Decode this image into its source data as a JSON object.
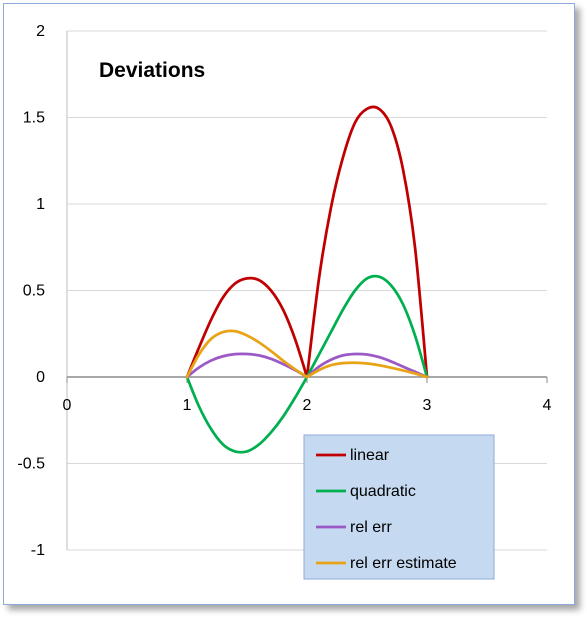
{
  "chart_data": {
    "type": "line",
    "title": "Deviations",
    "xlabel": "",
    "ylabel": "",
    "xlim": [
      0,
      4
    ],
    "ylim": [
      -1,
      2
    ],
    "x_ticks": [
      "0",
      "1",
      "2",
      "3",
      "4"
    ],
    "y_ticks": [
      "2",
      "1.5",
      "1",
      "0.5",
      "0",
      "-0.5",
      "-1"
    ],
    "grid": "horizontal",
    "legend_position": "bottom-right",
    "series": [
      {
        "name": "linear",
        "color": "#c00000",
        "x": [
          1.0,
          1.1,
          1.2,
          1.3,
          1.4,
          1.5,
          1.6,
          1.7,
          1.8,
          1.9,
          2.0,
          2.1,
          2.2,
          2.3,
          2.4,
          2.5,
          2.6,
          2.7,
          2.8,
          2.9,
          3.0
        ],
        "y": [
          0.0,
          0.17,
          0.33,
          0.46,
          0.54,
          0.57,
          0.56,
          0.5,
          0.39,
          0.22,
          0.0,
          0.57,
          0.98,
          1.27,
          1.47,
          1.55,
          1.55,
          1.45,
          1.2,
          0.75,
          0.0
        ]
      },
      {
        "name": "quadratic",
        "color": "#00b050",
        "x": [
          1.0,
          1.1,
          1.2,
          1.3,
          1.4,
          1.5,
          1.6,
          1.7,
          1.8,
          1.9,
          2.0,
          2.1,
          2.2,
          2.3,
          2.4,
          2.5,
          2.6,
          2.7,
          2.8,
          2.9,
          3.0
        ],
        "y": [
          0.0,
          -0.17,
          -0.3,
          -0.39,
          -0.43,
          -0.43,
          -0.39,
          -0.32,
          -0.23,
          -0.12,
          0.0,
          0.13,
          0.26,
          0.39,
          0.5,
          0.57,
          0.58,
          0.53,
          0.42,
          0.24,
          0.0
        ]
      },
      {
        "name": "rel err",
        "color": "#9b59c6",
        "x": [
          1.0,
          1.1,
          1.2,
          1.3,
          1.4,
          1.5,
          1.6,
          1.7,
          1.8,
          1.9,
          2.0,
          2.1,
          2.2,
          2.3,
          2.4,
          2.5,
          2.6,
          2.7,
          2.8,
          2.9,
          3.0
        ],
        "y": [
          0.0,
          0.055,
          0.095,
          0.12,
          0.132,
          0.133,
          0.125,
          0.105,
          0.075,
          0.04,
          0.0,
          0.06,
          0.1,
          0.125,
          0.133,
          0.13,
          0.115,
          0.09,
          0.06,
          0.03,
          0.0
        ]
      },
      {
        "name": "rel err estimate",
        "color": "#e8a317",
        "x": [
          1.0,
          1.1,
          1.2,
          1.3,
          1.4,
          1.5,
          1.6,
          1.7,
          1.8,
          1.9,
          2.0,
          2.1,
          2.2,
          2.3,
          2.4,
          2.5,
          2.6,
          2.7,
          2.8,
          2.9,
          3.0
        ],
        "y": [
          0.0,
          0.13,
          0.22,
          0.26,
          0.265,
          0.24,
          0.2,
          0.15,
          0.095,
          0.045,
          0.0,
          0.04,
          0.068,
          0.08,
          0.082,
          0.078,
          0.068,
          0.054,
          0.038,
          0.02,
          0.0
        ]
      }
    ]
  }
}
